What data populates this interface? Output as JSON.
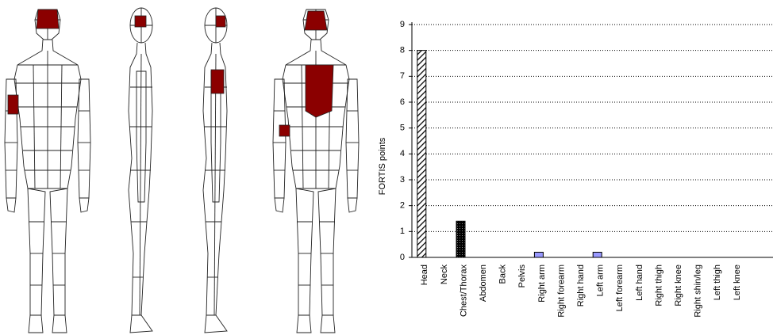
{
  "chart_data": {
    "type": "bar",
    "y_label": "FORTIS points",
    "categories": [
      "Head",
      "Neck",
      "Chest/Thorax",
      "Abdomen",
      "Back",
      "Pelvis",
      "Right arm",
      "Right forearm",
      "Right hand",
      "Left arm",
      "Left forearm",
      "Left hand",
      "Right thigh",
      "Right knee",
      "Right shin/leg",
      "Left thigh",
      "Left knee"
    ],
    "values": [
      8,
      0,
      1.4,
      0,
      0,
      0,
      0.2,
      0,
      0,
      0.2,
      0,
      0,
      0,
      0,
      0,
      0,
      0
    ],
    "colors": [
      "url(#hatch)",
      "#ffffff",
      "url(#dots)",
      "#ffffff",
      "#ffffff",
      "#ffffff",
      "#9999ff",
      "#ffffff",
      "#ffffff",
      "#9999ff",
      "#ffffff",
      "#ffffff",
      "#ffffff",
      "#ffffff",
      "#ffffff",
      "#ffffff",
      "#ffffff"
    ],
    "ylim": [
      0,
      9
    ],
    "yticks": [
      0,
      1,
      2,
      3,
      4,
      5,
      6,
      7,
      8,
      9
    ],
    "grid": true
  }
}
